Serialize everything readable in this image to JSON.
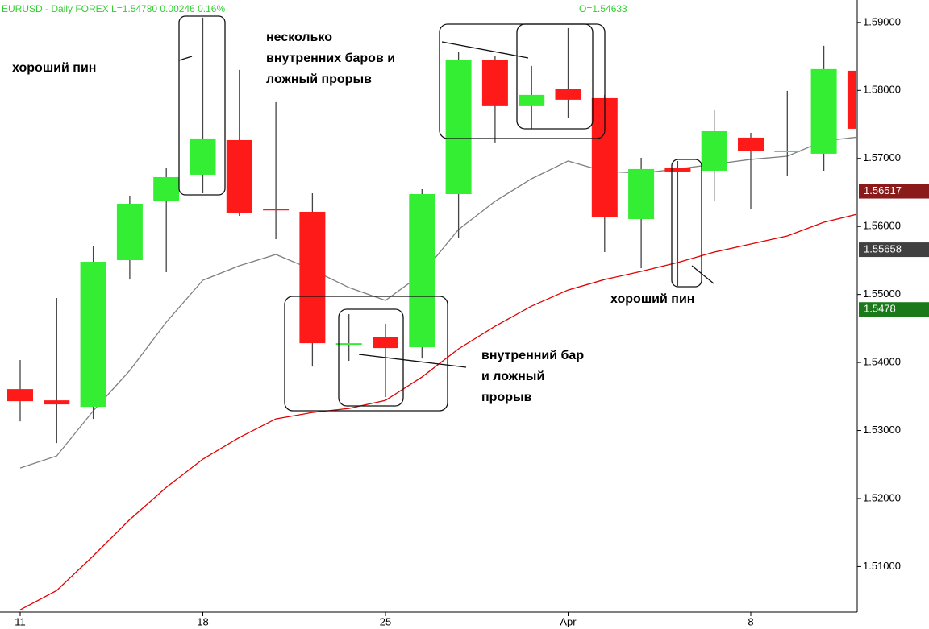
{
  "chart_data": {
    "type": "candlestick",
    "header": [
      "EURUSD - Daily  FOREX  L=1.54780  0.00246  0.16%",
      "O=1.54633"
    ],
    "categories": [
      "11",
      null,
      null,
      null,
      null,
      "18",
      null,
      null,
      null,
      null,
      "25",
      null,
      null,
      null,
      null,
      "Apr",
      null,
      null,
      null,
      null,
      "8",
      null,
      null,
      null
    ],
    "open": [
      1.53609,
      1.53443,
      1.53348,
      1.55505,
      1.5637,
      1.56761,
      1.5727,
      1.5626,
      1.56216,
      1.5427,
      1.54379,
      1.54225,
      1.56476,
      1.58443,
      1.5778,
      1.58017,
      1.57886,
      1.56109,
      1.56856,
      1.5682,
      1.57306,
      1.57104,
      1.57069,
      1.58289
    ],
    "high": [
      1.54036,
      1.54948,
      1.55718,
      1.56453,
      1.56867,
      1.59071,
      1.58301,
      1.57827,
      1.56488,
      1.54711,
      1.54569,
      1.56547,
      1.58562,
      1.58502,
      1.5836,
      1.58917,
      1.57934,
      1.57009,
      1.56962,
      1.5772,
      1.57377,
      1.57993,
      1.58656,
      1.58289
    ],
    "low": [
      1.53135,
      1.52815,
      1.53171,
      1.5522,
      1.55327,
      1.56488,
      1.56156,
      1.55813,
      1.53941,
      1.54024,
      1.53491,
      1.54059,
      1.55836,
      1.57235,
      1.57436,
      1.5759,
      1.55623,
      1.55386,
      1.55126,
      1.5637,
      1.56251,
      1.56749,
      1.5682,
      1.57436
    ],
    "close": [
      1.53431,
      1.53384,
      1.55481,
      1.56334,
      1.56725,
      1.57294,
      1.56204,
      1.56251,
      1.54284,
      1.54284,
      1.54213,
      1.56476,
      1.58443,
      1.5778,
      1.57934,
      1.57863,
      1.56133,
      1.56844,
      1.56808,
      1.574,
      1.57104,
      1.57116,
      1.58313,
      1.57436
    ],
    "up_color": "#33ee33",
    "down_color": "#ff1a1a",
    "wick_color": "#444444",
    "series": [
      {
        "color": "#808080",
        "values": [
          1.52448,
          1.52626,
          1.53289,
          1.53882,
          1.54593,
          1.55209,
          1.55422,
          1.55588,
          1.55363,
          1.55102,
          1.54913,
          1.55303,
          1.55955,
          1.5637,
          1.56701,
          1.56962,
          1.56808,
          1.56784,
          1.56844,
          1.56915,
          1.56986,
          1.57033,
          1.57258,
          1.57318
        ]
      },
      {
        "color": "#e00000",
        "values": [
          1.50363,
          1.50647,
          1.51156,
          1.5169,
          1.52164,
          1.52578,
          1.52898,
          1.53171,
          1.53265,
          1.53325,
          1.53443,
          1.53787,
          1.54201,
          1.54533,
          1.54829,
          1.55066,
          1.5522,
          1.55339,
          1.55469,
          1.55623,
          1.55742,
          1.5586,
          1.56062,
          1.56192
        ]
      }
    ],
    "ylim": [
      1.5033,
      1.5933
    ],
    "yticks": [
      {
        "value": 1.51,
        "label": "1.51000"
      },
      {
        "value": 1.52,
        "label": "1.52000"
      },
      {
        "value": 1.53,
        "label": "1.53000"
      },
      {
        "value": 1.54,
        "label": "1.54000"
      },
      {
        "value": 1.55,
        "label": "1.55000"
      },
      {
        "value": 1.56,
        "label": "1.56000"
      },
      {
        "value": 1.57,
        "label": "1.57000"
      },
      {
        "value": 1.58,
        "label": "1.58000"
      },
      {
        "value": 1.59,
        "label": "1.59000"
      }
    ],
    "price_labels": [
      {
        "value": 1.56517,
        "color": "#8b1a1a"
      },
      {
        "value": 1.55658,
        "color": "#404040"
      },
      {
        "value": 1.5478,
        "color": "#1a7a1a"
      }
    ],
    "grid": false,
    "annotations": [
      {
        "lines": [
          "хороший пин"
        ]
      },
      {
        "lines": [
          "несколько",
          "внутренних баров и",
          "ложный прорыв"
        ]
      },
      {
        "lines": [
          "хороший пин"
        ]
      },
      {
        "lines": [
          "внутренний бар",
          "и ложный",
          "прорыв"
        ]
      }
    ]
  }
}
